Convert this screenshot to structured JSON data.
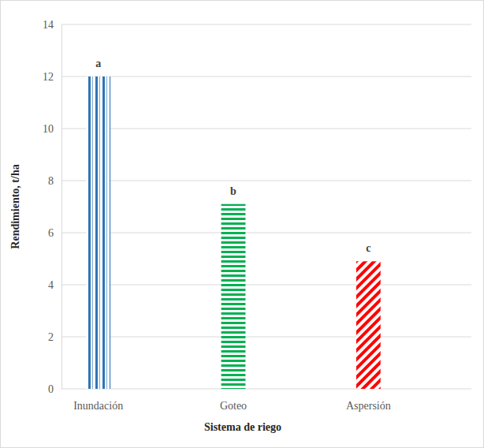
{
  "chart_data": {
    "type": "bar",
    "x_label": "Sistema de riego",
    "y_label": "Rendimiento, t/ha",
    "categories": [
      "Inundación",
      "Goteo",
      "Aspersión"
    ],
    "values": [
      12,
      7.1,
      4.9
    ],
    "annotations": [
      "a",
      "b",
      "c"
    ],
    "colors": [
      "#2e75b6",
      "#00b050",
      "#ff0000"
    ],
    "ylim": [
      0,
      14
    ],
    "yticks": [
      0,
      2,
      4,
      6,
      8,
      10,
      12,
      14
    ],
    "grid": true
  }
}
